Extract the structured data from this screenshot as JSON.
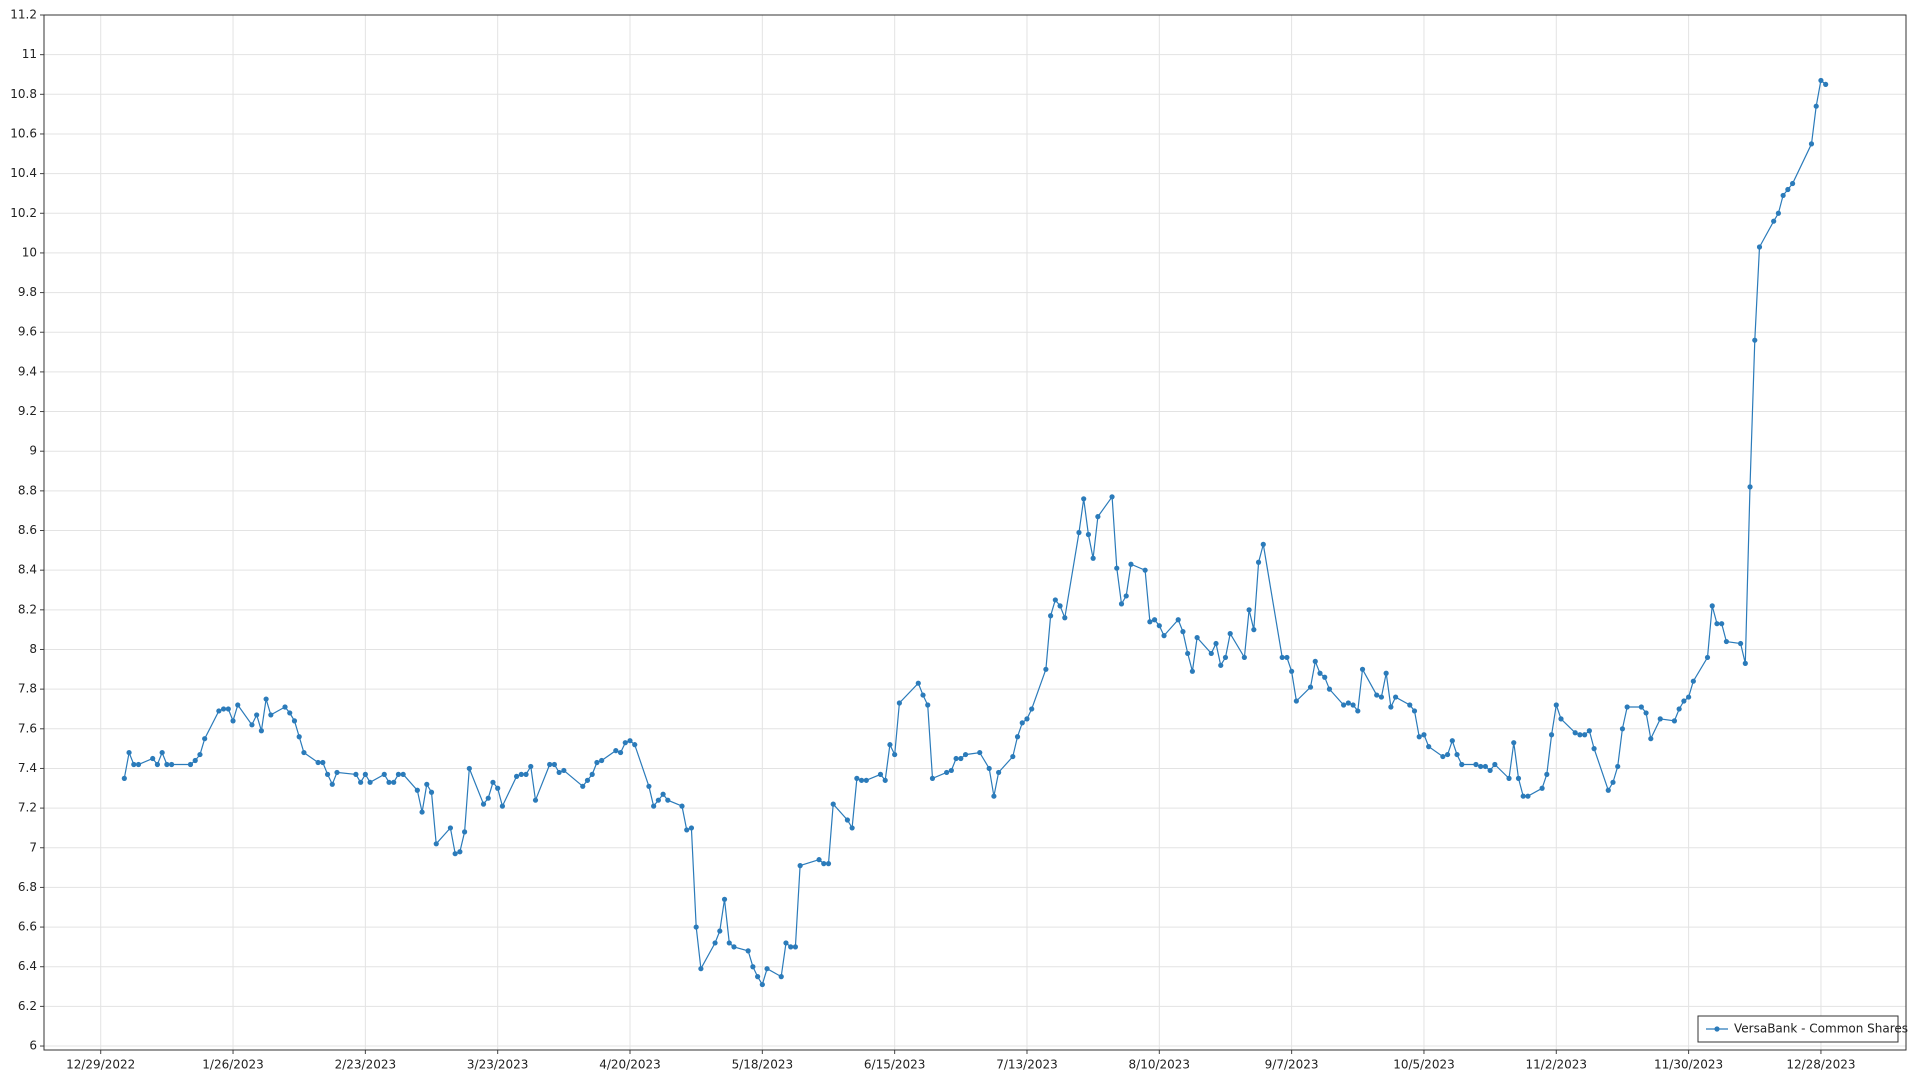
{
  "chart_data": {
    "type": "line",
    "x": [
      "2023-01-03",
      "2023-01-04",
      "2023-01-05",
      "2023-01-06",
      "2023-01-09",
      "2023-01-10",
      "2023-01-11",
      "2023-01-12",
      "2023-01-13",
      "2023-01-17",
      "2023-01-18",
      "2023-01-19",
      "2023-01-20",
      "2023-01-23",
      "2023-01-24",
      "2023-01-25",
      "2023-01-26",
      "2023-01-27",
      "2023-01-30",
      "2023-01-31",
      "2023-02-01",
      "2023-02-02",
      "2023-02-03",
      "2023-02-06",
      "2023-02-07",
      "2023-02-08",
      "2023-02-09",
      "2023-02-10",
      "2023-02-13",
      "2023-02-14",
      "2023-02-15",
      "2023-02-16",
      "2023-02-17",
      "2023-02-21",
      "2023-02-22",
      "2023-02-23",
      "2023-02-24",
      "2023-02-27",
      "2023-02-28",
      "2023-03-01",
      "2023-03-02",
      "2023-03-03",
      "2023-03-06",
      "2023-03-07",
      "2023-03-08",
      "2023-03-09",
      "2023-03-10",
      "2023-03-13",
      "2023-03-14",
      "2023-03-15",
      "2023-03-16",
      "2023-03-17",
      "2023-03-20",
      "2023-03-21",
      "2023-03-22",
      "2023-03-23",
      "2023-03-24",
      "2023-03-27",
      "2023-03-28",
      "2023-03-29",
      "2023-03-30",
      "2023-03-31",
      "2023-04-03",
      "2023-04-04",
      "2023-04-05",
      "2023-04-06",
      "2023-04-10",
      "2023-04-11",
      "2023-04-12",
      "2023-04-13",
      "2023-04-14",
      "2023-04-17",
      "2023-04-18",
      "2023-04-19",
      "2023-04-20",
      "2023-04-21",
      "2023-04-24",
      "2023-04-25",
      "2023-04-26",
      "2023-04-27",
      "2023-04-28",
      "2023-05-01",
      "2023-05-02",
      "2023-05-03",
      "2023-05-04",
      "2023-05-05",
      "2023-05-08",
      "2023-05-09",
      "2023-05-10",
      "2023-05-11",
      "2023-05-12",
      "2023-05-15",
      "2023-05-16",
      "2023-05-17",
      "2023-05-18",
      "2023-05-19",
      "2023-05-22",
      "2023-05-23",
      "2023-05-24",
      "2023-05-25",
      "2023-05-26",
      "2023-05-30",
      "2023-05-31",
      "2023-06-01",
      "2023-06-02",
      "2023-06-05",
      "2023-06-06",
      "2023-06-07",
      "2023-06-08",
      "2023-06-09",
      "2023-06-12",
      "2023-06-13",
      "2023-06-14",
      "2023-06-15",
      "2023-06-16",
      "2023-06-20",
      "2023-06-21",
      "2023-06-22",
      "2023-06-23",
      "2023-06-26",
      "2023-06-27",
      "2023-06-28",
      "2023-06-29",
      "2023-06-30",
      "2023-07-03",
      "2023-07-05",
      "2023-07-06",
      "2023-07-07",
      "2023-07-10",
      "2023-07-11",
      "2023-07-12",
      "2023-07-13",
      "2023-07-14",
      "2023-07-17",
      "2023-07-18",
      "2023-07-19",
      "2023-07-20",
      "2023-07-21",
      "2023-07-24",
      "2023-07-25",
      "2023-07-26",
      "2023-07-27",
      "2023-07-28",
      "2023-07-31",
      "2023-08-01",
      "2023-08-02",
      "2023-08-03",
      "2023-08-04",
      "2023-08-07",
      "2023-08-08",
      "2023-08-09",
      "2023-08-10",
      "2023-08-11",
      "2023-08-14",
      "2023-08-15",
      "2023-08-16",
      "2023-08-17",
      "2023-08-18",
      "2023-08-21",
      "2023-08-22",
      "2023-08-23",
      "2023-08-24",
      "2023-08-25",
      "2023-08-28",
      "2023-08-29",
      "2023-08-30",
      "2023-08-31",
      "2023-09-01",
      "2023-09-05",
      "2023-09-06",
      "2023-09-07",
      "2023-09-08",
      "2023-09-11",
      "2023-09-12",
      "2023-09-13",
      "2023-09-14",
      "2023-09-15",
      "2023-09-18",
      "2023-09-19",
      "2023-09-20",
      "2023-09-21",
      "2023-09-22",
      "2023-09-25",
      "2023-09-26",
      "2023-09-27",
      "2023-09-28",
      "2023-09-29",
      "2023-10-02",
      "2023-10-03",
      "2023-10-04",
      "2023-10-05",
      "2023-10-06",
      "2023-10-09",
      "2023-10-10",
      "2023-10-11",
      "2023-10-12",
      "2023-10-13",
      "2023-10-16",
      "2023-10-17",
      "2023-10-18",
      "2023-10-19",
      "2023-10-20",
      "2023-10-23",
      "2023-10-24",
      "2023-10-25",
      "2023-10-26",
      "2023-10-27",
      "2023-10-30",
      "2023-10-31",
      "2023-11-01",
      "2023-11-02",
      "2023-11-03",
      "2023-11-06",
      "2023-11-07",
      "2023-11-08",
      "2023-11-09",
      "2023-11-10",
      "2023-11-13",
      "2023-11-14",
      "2023-11-15",
      "2023-11-16",
      "2023-11-17",
      "2023-11-20",
      "2023-11-21",
      "2023-11-22",
      "2023-11-24",
      "2023-11-27",
      "2023-11-28",
      "2023-11-29",
      "2023-11-30",
      "2023-12-01",
      "2023-12-04",
      "2023-12-05",
      "2023-12-06",
      "2023-12-07",
      "2023-12-08",
      "2023-12-11",
      "2023-12-12",
      "2023-12-13",
      "2023-12-14",
      "2023-12-15",
      "2023-12-18",
      "2023-12-19",
      "2023-12-20",
      "2023-12-21",
      "2023-12-22",
      "2023-12-26",
      "2023-12-27",
      "2023-12-28",
      "2023-12-29"
    ],
    "series": [
      {
        "name": "VersaBank - Common Shares",
        "color": "#2b7bba",
        "values": [
          7.35,
          7.48,
          7.42,
          7.42,
          7.45,
          7.42,
          7.48,
          7.42,
          7.42,
          7.42,
          7.44,
          7.47,
          7.55,
          7.69,
          7.7,
          7.7,
          7.64,
          7.72,
          7.62,
          7.67,
          7.59,
          7.75,
          7.67,
          7.71,
          7.68,
          7.64,
          7.56,
          7.48,
          7.43,
          7.43,
          7.37,
          7.32,
          7.38,
          7.37,
          7.33,
          7.37,
          7.33,
          7.37,
          7.33,
          7.33,
          7.37,
          7.37,
          7.29,
          7.18,
          7.32,
          7.28,
          7.02,
          7.1,
          6.97,
          6.98,
          7.08,
          7.4,
          7.22,
          7.25,
          7.33,
          7.3,
          7.21,
          7.36,
          7.37,
          7.37,
          7.41,
          7.24,
          7.42,
          7.42,
          7.38,
          7.39,
          7.31,
          7.34,
          7.37,
          7.43,
          7.44,
          7.49,
          7.48,
          7.53,
          7.54,
          7.52,
          7.31,
          7.21,
          7.24,
          7.27,
          7.24,
          7.21,
          7.09,
          7.1,
          6.6,
          6.39,
          6.52,
          6.58,
          6.74,
          6.52,
          6.5,
          6.48,
          6.4,
          6.35,
          6.31,
          6.39,
          6.35,
          6.52,
          6.5,
          6.5,
          6.91,
          6.94,
          6.92,
          6.92,
          7.22,
          7.14,
          7.1,
          7.35,
          7.34,
          7.34,
          7.37,
          7.34,
          7.52,
          7.47,
          7.73,
          7.83,
          7.77,
          7.72,
          7.35,
          7.38,
          7.39,
          7.45,
          7.45,
          7.47,
          7.48,
          7.4,
          7.26,
          7.38,
          7.46,
          7.56,
          7.63,
          7.65,
          7.7,
          7.9,
          8.17,
          8.25,
          8.22,
          8.16,
          8.59,
          8.76,
          8.58,
          8.46,
          8.67,
          8.77,
          8.41,
          8.23,
          8.27,
          8.43,
          8.4,
          8.14,
          8.15,
          8.12,
          8.07,
          8.15,
          8.09,
          7.98,
          7.89,
          8.06,
          7.98,
          8.03,
          7.92,
          7.96,
          8.08,
          7.96,
          8.2,
          8.1,
          8.44,
          8.53,
          7.96,
          7.96,
          7.89,
          7.74,
          7.81,
          7.94,
          7.88,
          7.86,
          7.8,
          7.72,
          7.73,
          7.72,
          7.69,
          7.9,
          7.77,
          7.76,
          7.88,
          7.71,
          7.76,
          7.72,
          7.69,
          7.56,
          7.57,
          7.51,
          7.46,
          7.47,
          7.54,
          7.47,
          7.42,
          7.42,
          7.41,
          7.41,
          7.39,
          7.42,
          7.35,
          7.53,
          7.35,
          7.26,
          7.26,
          7.3,
          7.37,
          7.57,
          7.72,
          7.65,
          7.58,
          7.57,
          7.57,
          7.59,
          7.5,
          7.29,
          7.33,
          7.41,
          7.6,
          7.71,
          7.71,
          7.68,
          7.55,
          7.65,
          7.64,
          7.7,
          7.74,
          7.76,
          7.84,
          7.96,
          8.22,
          8.13,
          8.13,
          8.04,
          8.03,
          7.93,
          8.82,
          9.56,
          10.03,
          10.16,
          10.2,
          10.29,
          10.32,
          10.35,
          10.55,
          10.74,
          10.87,
          10.85
        ]
      }
    ],
    "xlim": [
      "2022-12-17",
      "2024-01-15"
    ],
    "xticks": [
      {
        "value": "2022-12-29",
        "label": "12/29/2022"
      },
      {
        "value": "2023-01-26",
        "label": "1/26/2023"
      },
      {
        "value": "2023-02-23",
        "label": "2/23/2023"
      },
      {
        "value": "2023-03-23",
        "label": "3/23/2023"
      },
      {
        "value": "2023-04-20",
        "label": "4/20/2023"
      },
      {
        "value": "2023-05-18",
        "label": "5/18/2023"
      },
      {
        "value": "2023-06-15",
        "label": "6/15/2023"
      },
      {
        "value": "2023-07-13",
        "label": "7/13/2023"
      },
      {
        "value": "2023-08-10",
        "label": "8/10/2023"
      },
      {
        "value": "2023-09-07",
        "label": "9/7/2023"
      },
      {
        "value": "2023-10-05",
        "label": "10/5/2023"
      },
      {
        "value": "2023-11-02",
        "label": "11/2/2023"
      },
      {
        "value": "2023-11-30",
        "label": "11/30/2023"
      },
      {
        "value": "2023-12-28",
        "label": "12/28/2023"
      }
    ],
    "ylim": [
      5.98,
      11.2
    ],
    "yticks": [
      6,
      6.2,
      6.4,
      6.6,
      6.8,
      7,
      7.2,
      7.4,
      7.6,
      7.8,
      8,
      8.2,
      8.4,
      8.6,
      8.8,
      9,
      9.2,
      9.4,
      9.6,
      9.8,
      10,
      10.2,
      10.4,
      10.6,
      10.8,
      11,
      11.2
    ],
    "grid": true,
    "legend": "lower right"
  }
}
